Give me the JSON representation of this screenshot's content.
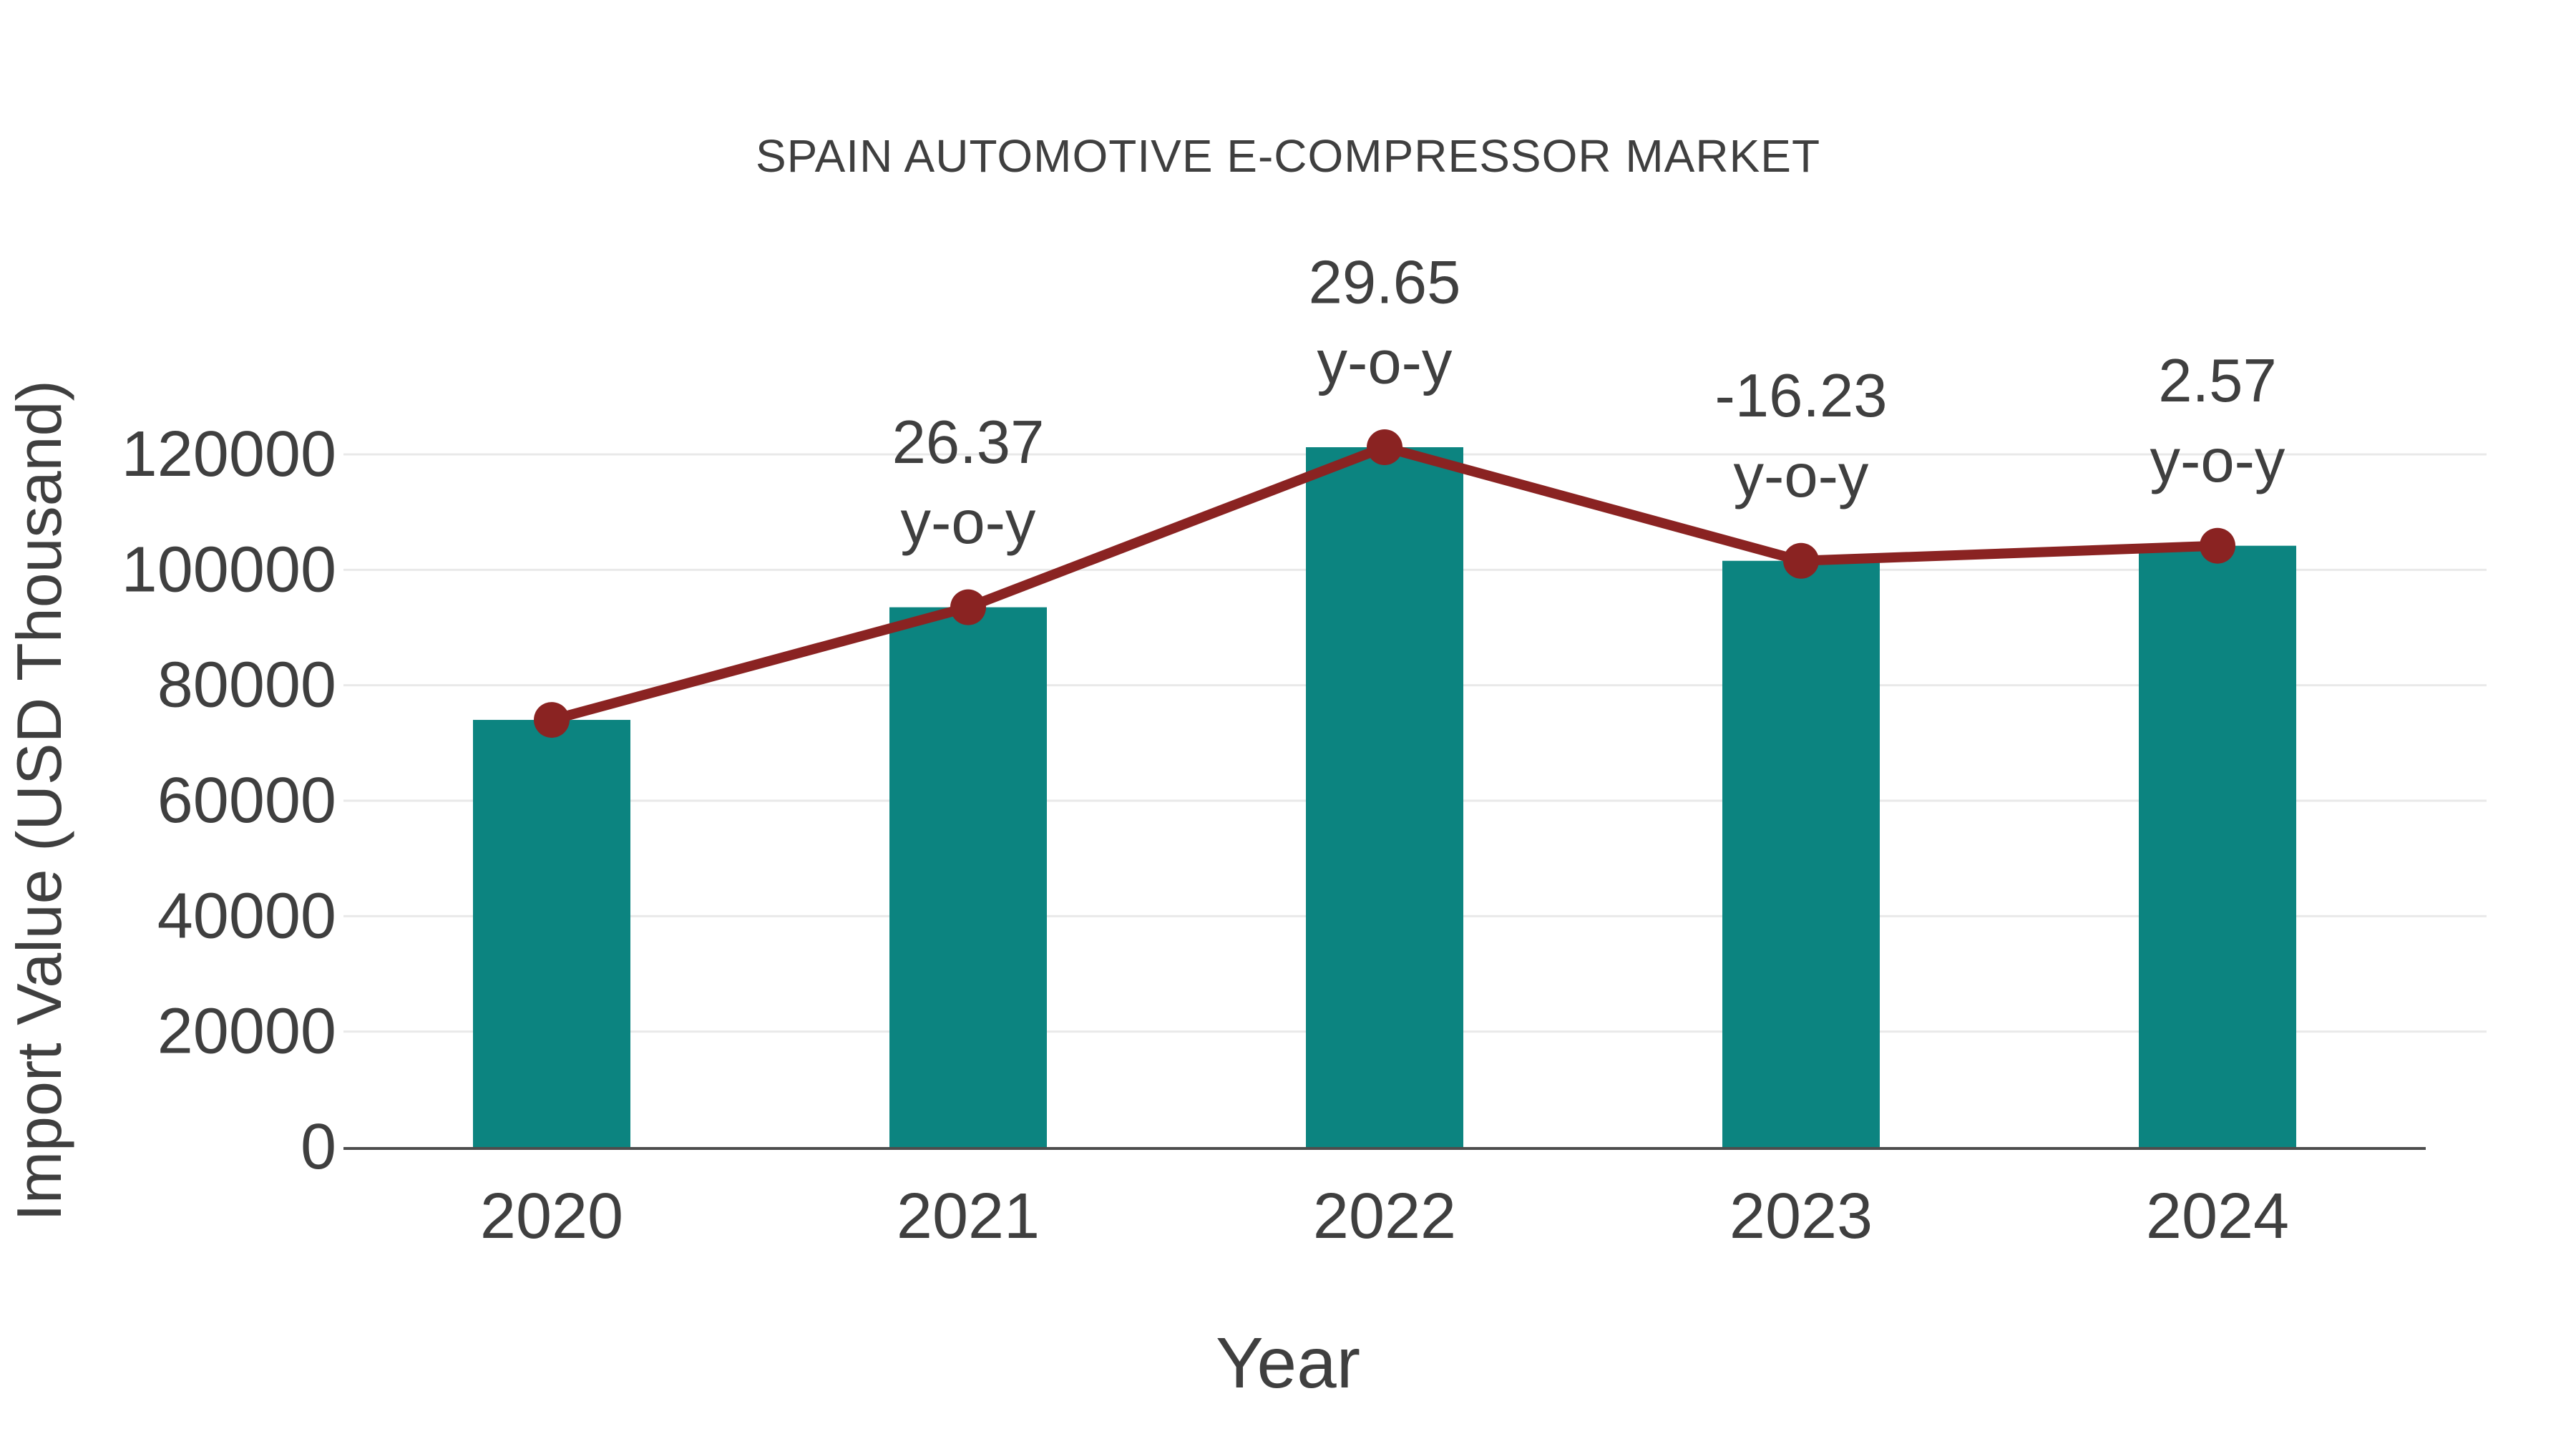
{
  "chart_data": {
    "type": "bar",
    "title": "SPAIN AUTOMOTIVE E-COMPRESSOR MARKET",
    "xlabel": "Year",
    "ylabel": "Import Value (USD Thousand)",
    "categories": [
      "2020",
      "2021",
      "2022",
      "2023",
      "2024"
    ],
    "series": [
      {
        "name": "Import Value",
        "chart_type": "bar",
        "values": [
          74000,
          93513,
          121240,
          101560,
          104170
        ]
      },
      {
        "name": "y-o-y change line",
        "chart_type": "line",
        "values": [
          74000,
          93513,
          121240,
          101560,
          104170
        ],
        "point_labels": [
          "",
          "26.37",
          "29.65",
          "-16.23",
          "2.57"
        ],
        "point_sublabels": [
          "",
          "y-o-y",
          "y-o-y",
          "y-o-y",
          "y-o-y"
        ]
      }
    ],
    "yticks": [
      0,
      20000,
      40000,
      60000,
      80000,
      100000,
      120000
    ],
    "ylim": [
      0,
      130000
    ],
    "grid": true,
    "legend_position": "none",
    "colors": {
      "bar": "#0c8480",
      "line": "#8a2322",
      "marker": "#8a2322",
      "text": "#3f3f3f",
      "grid": "#e9e9e9",
      "axis": "#4d4d4d"
    }
  }
}
